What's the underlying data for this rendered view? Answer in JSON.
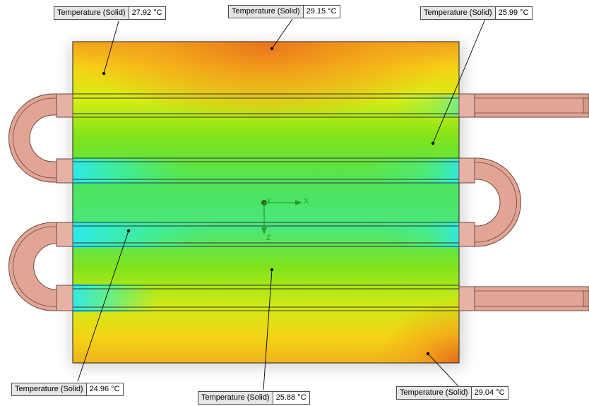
{
  "window": {
    "title": ""
  },
  "colors": {
    "hot": "#e8701a",
    "warm": "#f7e614",
    "mid": "#74e317",
    "cool": "#2ef2c8",
    "cold": "#2ae8f2",
    "pipe": "#e2a595",
    "pipe_edge": "#6a4840",
    "axis": "#27a02e",
    "label_bg": "#e6e6e6"
  },
  "probes": [
    {
      "name": "Temperature (Solid)",
      "value": "27.92 °C"
    },
    {
      "name": "Temperature (Solid)",
      "value": "29.15 °C"
    },
    {
      "name": "Temperature (Solid)",
      "value": "25.99 °C"
    },
    {
      "name": "Temperature (Solid)",
      "value": "24.96 °C"
    },
    {
      "name": "Temperature (Solid)",
      "value": "25.88 °C"
    },
    {
      "name": "Temperature (Solid)",
      "value": "29.04 °C"
    }
  ],
  "triad": {
    "x_label": "X",
    "y_label": "Y",
    "z_label": "Z"
  }
}
